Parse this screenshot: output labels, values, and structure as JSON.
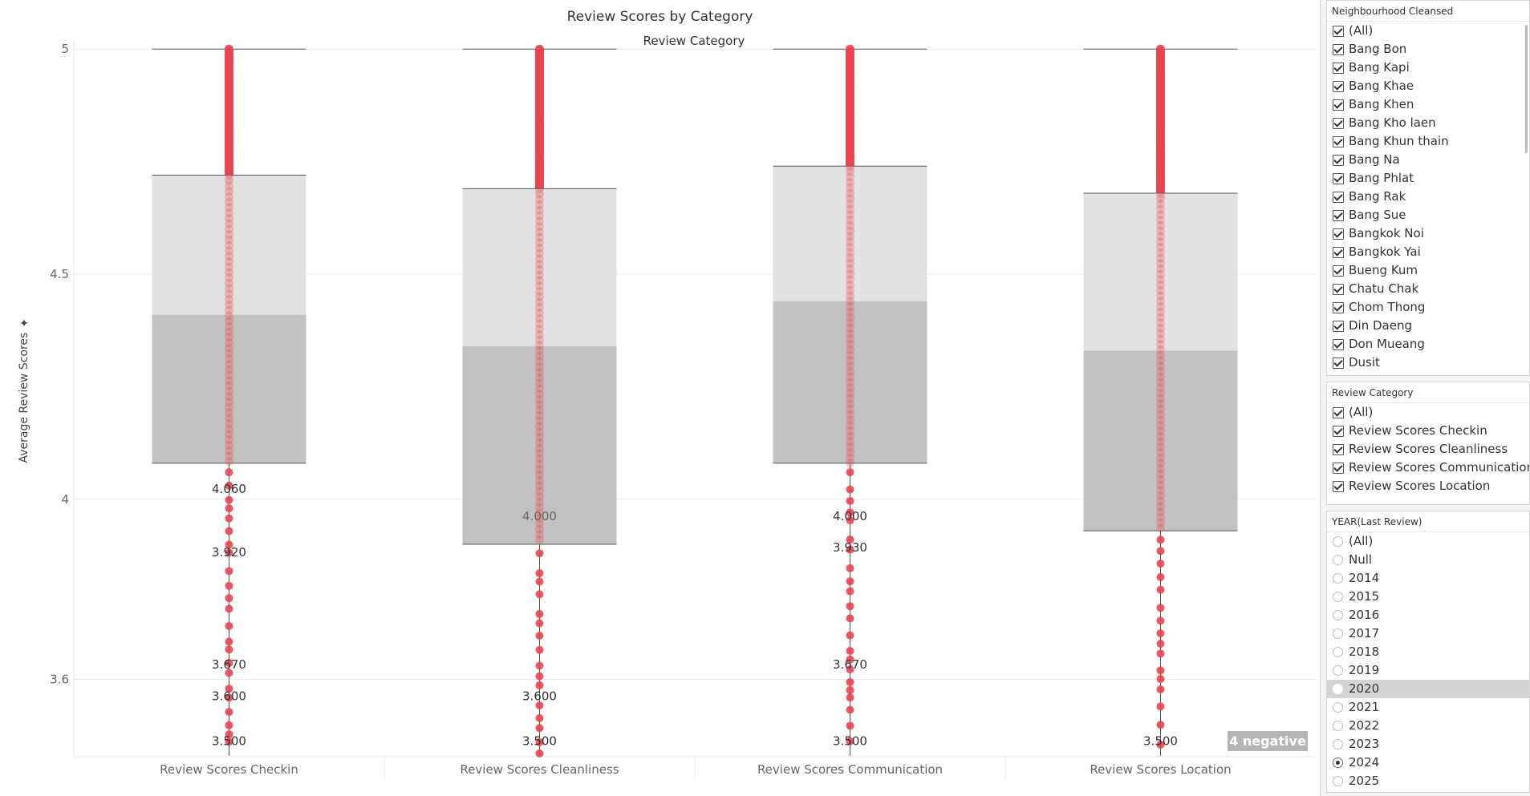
{
  "chart_data": {
    "type": "box-plot",
    "title": "Review Scores by Category",
    "column_header": "Review Category",
    "ylabel": "Average Review Scores",
    "ylim": [
      3.43,
      5.02
    ],
    "yticks": [
      "5",
      "4.5",
      "4",
      "3.6"
    ],
    "ytick_values": [
      5,
      4.5,
      4,
      3.6
    ],
    "categories": [
      "Review Scores Checkin",
      "Review Scores Cleanliness",
      "Review Scores Communication",
      "Review Scores Location"
    ],
    "boxes": [
      {
        "category": "Review Scores Checkin",
        "whisker_high": 5.0,
        "q3": 4.72,
        "median": 4.41,
        "q1": 4.08
      },
      {
        "category": "Review Scores Cleanliness",
        "whisker_high": 5.0,
        "q3": 4.69,
        "median": 4.34,
        "q1": 3.9
      },
      {
        "category": "Review Scores Communication",
        "whisker_high": 5.0,
        "q3": 4.74,
        "median": 4.44,
        "q1": 4.08
      },
      {
        "category": "Review Scores Location",
        "whisker_high": 5.0,
        "q3": 4.68,
        "median": 4.33,
        "q1": 3.93
      }
    ],
    "point_labels": [
      {
        "category": "Review Scores Checkin",
        "labels": [
          {
            "value": 4.06,
            "text": "4.060"
          },
          {
            "value": 3.92,
            "text": "3.920"
          },
          {
            "value": 3.67,
            "text": "3.670"
          },
          {
            "value": 3.6,
            "text": "3.600"
          },
          {
            "value": 3.5,
            "text": "3.500"
          }
        ]
      },
      {
        "category": "Review Scores Cleanliness",
        "labels": [
          {
            "value": 4.0,
            "text": "4.000"
          },
          {
            "value": 3.6,
            "text": "3.600"
          },
          {
            "value": 3.5,
            "text": "3.500"
          }
        ]
      },
      {
        "category": "Review Scores Communication",
        "labels": [
          {
            "value": 4.0,
            "text": "4.000"
          },
          {
            "value": 3.93,
            "text": "3.930"
          },
          {
            "value": 3.67,
            "text": "3.670"
          },
          {
            "value": 3.5,
            "text": "3.500"
          }
        ]
      },
      {
        "category": "Review Scores Location",
        "labels": [
          {
            "value": 3.5,
            "text": "3.500"
          }
        ]
      }
    ],
    "point_color": "#e8454f",
    "box_upper_color": "#e0e0e0",
    "box_lower_color": "#bdbdbd"
  },
  "badge": "4 negative",
  "filters": {
    "neighbourhood": {
      "title": "Neighbourhood Cleansed",
      "items": [
        "(All)",
        "Bang Bon",
        "Bang Kapi",
        "Bang Khae",
        "Bang Khen",
        "Bang Kho laen",
        "Bang Khun thain",
        "Bang Na",
        "Bang Phlat",
        "Bang Rak",
        "Bang Sue",
        "Bangkok Noi",
        "Bangkok Yai",
        "Bueng Kum",
        "Chatu Chak",
        "Chom Thong",
        "Din Daeng",
        "Don Mueang",
        "Dusit"
      ]
    },
    "review_category": {
      "title": "Review Category",
      "items": [
        "(All)",
        "Review Scores Checkin",
        "Review Scores Cleanliness",
        "Review Scores Communication",
        "Review Scores Location"
      ]
    },
    "year": {
      "title": "YEAR(Last Review)",
      "items": [
        "(All)",
        "Null",
        "2014",
        "2015",
        "2016",
        "2017",
        "2018",
        "2019",
        "2020",
        "2021",
        "2022",
        "2023",
        "2024",
        "2025"
      ],
      "selected": "2024",
      "highlighted": "2020"
    }
  }
}
